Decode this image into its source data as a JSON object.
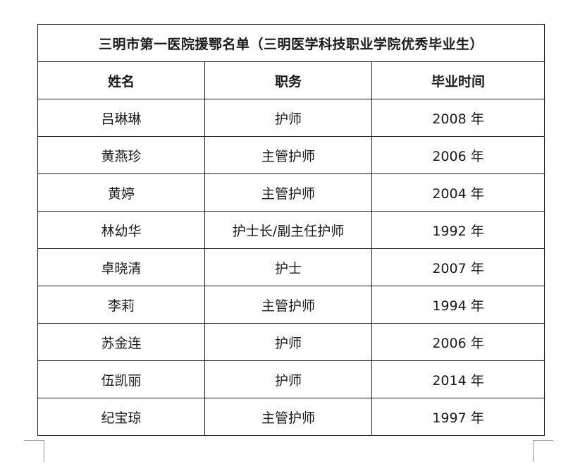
{
  "table": {
    "title": "三明市第一医院援鄂名单（三明医学科技职业学院优秀毕业生）",
    "headers": [
      "姓名",
      "职务",
      "毕业时间"
    ],
    "rows": [
      {
        "name": "吕琳琳",
        "role": "护师",
        "year": "2008 年"
      },
      {
        "name": "黄燕珍",
        "role": "主管护师",
        "year": "2006 年"
      },
      {
        "name": "黄婷",
        "role": "主管护师",
        "year": "2004 年"
      },
      {
        "name": "林幼华",
        "role": "护士长/副主任护师",
        "year": "1992 年"
      },
      {
        "name": "卓晓清",
        "role": "护士",
        "year": "2007 年"
      },
      {
        "name": "李莉",
        "role": "主管护师",
        "year": "1994 年"
      },
      {
        "name": "苏金连",
        "role": "护师",
        "year": "2006 年"
      },
      {
        "name": "伍凯丽",
        "role": "护师",
        "year": "2014 年"
      },
      {
        "name": "纪宝琼",
        "role": "主管护师",
        "year": "1997 年"
      }
    ]
  }
}
